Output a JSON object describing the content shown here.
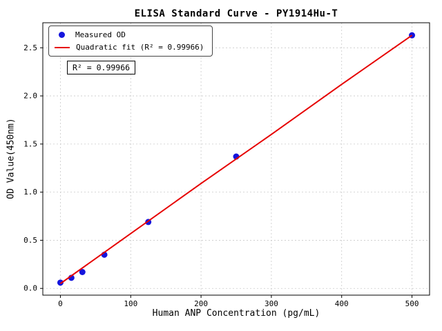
{
  "chart_data": {
    "type": "scatter",
    "title": "ELISA Standard Curve - PY1914Hu-T",
    "xlabel": "Human ANP Concentration (pg/mL)",
    "ylabel": "OD Value(450nm)",
    "xlim": [
      -25,
      525
    ],
    "ylim": [
      -0.07,
      2.76
    ],
    "grid": true,
    "x_ticks": {
      "values": [
        0,
        100,
        200,
        300,
        400,
        500
      ],
      "labels": [
        "0",
        "100",
        "200",
        "300",
        "400",
        "500"
      ]
    },
    "y_ticks": {
      "values": [
        0.0,
        0.5,
        1.0,
        1.5,
        2.0,
        2.5
      ],
      "labels": [
        "0.0",
        "0.5",
        "1.0",
        "1.5",
        "2.0",
        "2.5"
      ]
    },
    "colors": {
      "points": "#1515dd",
      "fit": "#e60000",
      "grid": "#c9c9c9",
      "axes": "#000000"
    },
    "series": [
      {
        "name": "Measured OD",
        "type": "scatter",
        "color_key": "points",
        "x": [
          0,
          15.6,
          31.25,
          62.5,
          125,
          250,
          500
        ],
        "y": [
          0.06,
          0.11,
          0.17,
          0.35,
          0.69,
          1.37,
          2.63
        ]
      },
      {
        "name": "Quadratic fit",
        "type": "line",
        "color_key": "fit",
        "x": [
          0,
          100,
          200,
          300,
          400,
          500
        ],
        "y": [
          0.05,
          0.57,
          1.09,
          1.6,
          2.12,
          2.63
        ]
      }
    ],
    "legend": {
      "position": "upper left",
      "entries": [
        {
          "label": "Measured OD",
          "marker": "dot"
        },
        {
          "label": "Quadratic fit (R² = 0.99966)",
          "marker": "line"
        }
      ]
    },
    "annotation": "R² = 0.99966"
  }
}
